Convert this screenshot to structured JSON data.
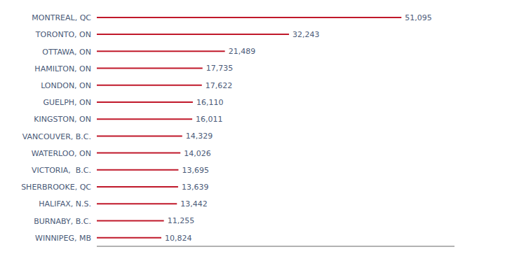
{
  "chart_data": {
    "type": "bar",
    "orientation": "horizontal",
    "categories": [
      "WINNIPEG, MB",
      "BURNABY, B.C.",
      "HALIFAX, N.S.",
      "SHERBROOKE, QC",
      "VICTORIA,  B.C.",
      "WATERLOO, ON",
      "VANCOUVER, B.C.",
      "KINGSTON, ON",
      "GUELPH, ON",
      "LONDON, ON",
      "HAMILTON, ON",
      "OTTAWA, ON",
      "TORONTO, ON",
      "MONTREAL, QC"
    ],
    "values": [
      10824,
      11255,
      13442,
      13639,
      13695,
      14026,
      14329,
      16011,
      16110,
      17622,
      17735,
      21489,
      32243,
      51095
    ],
    "value_labels": [
      "10,824",
      "11,255",
      "13,442",
      "13,639",
      "13,695",
      "14,026",
      "14,329",
      "16,011",
      "16,110",
      "17,622",
      "17,735",
      "21,489",
      "32,243",
      "51,095"
    ],
    "data_labels": true,
    "color": "#c0182a",
    "xlim": [
      0,
      60000
    ],
    "tick_labels": "y",
    "grid": false
  }
}
